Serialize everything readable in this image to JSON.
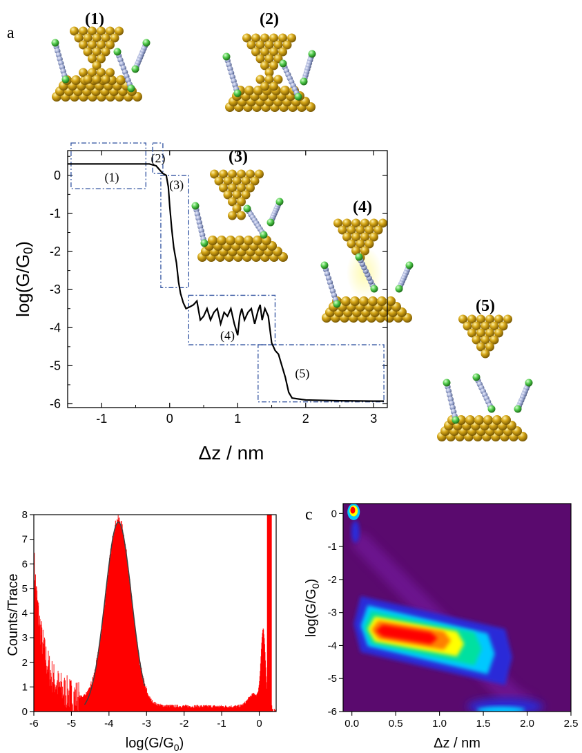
{
  "panel_labels": {
    "a": "a",
    "c": "c"
  },
  "illustrations": {
    "labels": [
      "(1)",
      "(2)",
      "(3)",
      "(4)",
      "(5)"
    ],
    "colors": {
      "gold": "#c9a019",
      "gold_dark": "#8a6a0a",
      "chain": "#9aa6cf",
      "end_group": "#4fc94a",
      "glow": "#fff8a0"
    }
  },
  "chart_data": [
    {
      "id": "trace",
      "type": "line",
      "xlabel": "Δz / nm",
      "ylabel": "log(G/G0)",
      "xlim": [
        -1.5,
        3.2
      ],
      "ylim": [
        -6.1,
        0.65
      ],
      "xticks": [
        -1,
        0,
        1,
        2,
        3
      ],
      "yticks": [
        0,
        -1,
        -2,
        -3,
        -4,
        -5,
        -6
      ],
      "x": [
        -1.5,
        -0.3,
        -0.2,
        -0.15,
        -0.1,
        -0.05,
        -0.02,
        0.0,
        0.03,
        0.06,
        0.1,
        0.13,
        0.16,
        0.2,
        0.24,
        0.3,
        0.35,
        0.4,
        0.45,
        0.5,
        0.55,
        0.6,
        0.65,
        0.7,
        0.75,
        0.8,
        0.85,
        0.9,
        0.95,
        1.0,
        1.03,
        1.06,
        1.1,
        1.15,
        1.2,
        1.25,
        1.3,
        1.33,
        1.36,
        1.4,
        1.45,
        1.5,
        1.55,
        1.6,
        1.65,
        1.7,
        1.75,
        1.8,
        2.0,
        2.5,
        3.0,
        3.15
      ],
      "y": [
        0.3,
        0.3,
        0.25,
        0.15,
        0.05,
        0.0,
        -0.3,
        -0.8,
        -1.4,
        -1.9,
        -2.3,
        -2.8,
        -3.1,
        -3.35,
        -3.5,
        -3.45,
        -3.4,
        -3.3,
        -3.8,
        -3.7,
        -3.5,
        -3.8,
        -3.6,
        -3.5,
        -3.9,
        -3.6,
        -3.7,
        -3.5,
        -3.9,
        -4.2,
        -3.7,
        -3.5,
        -3.8,
        -3.6,
        -3.5,
        -3.9,
        -3.55,
        -3.4,
        -3.8,
        -3.5,
        -3.7,
        -4.4,
        -4.6,
        -4.7,
        -5.0,
        -5.3,
        -5.7,
        -5.85,
        -5.9,
        -5.92,
        -5.93,
        -5.93
      ],
      "annotations": [
        "(1)",
        "(2)",
        "(3)",
        "(4)",
        "(5)"
      ],
      "boxes": [
        {
          "x": [
            -1.45,
            -0.35
          ],
          "y": [
            -0.35,
            0.85
          ]
        },
        {
          "x": [
            -0.25,
            -0.1
          ],
          "y": [
            0.05,
            0.85
          ]
        },
        {
          "x": [
            -0.13,
            0.28
          ],
          "y": [
            -2.95,
            0.0
          ]
        },
        {
          "x": [
            0.28,
            1.55
          ],
          "y": [
            -4.45,
            -3.15
          ]
        },
        {
          "x": [
            1.3,
            3.15
          ],
          "y": [
            -5.95,
            -4.45
          ]
        }
      ]
    },
    {
      "id": "histogram",
      "type": "bar",
      "ylabel": "Counts/Trace",
      "xlabel": "log(G/G0)",
      "xlim": [
        -6.0,
        0.45
      ],
      "ylim": [
        0,
        8
      ],
      "xticks": [
        -6,
        -5,
        -4,
        -3,
        -2,
        -1,
        0
      ],
      "yticks": [
        0,
        1,
        2,
        3,
        4,
        5,
        6,
        7,
        8
      ],
      "series": [
        {
          "color": "#ff0000"
        }
      ],
      "fit": {
        "peak_x": -3.75,
        "peak_y": 7.7,
        "color": "#404040"
      }
    },
    {
      "id": "density",
      "type": "heatmap",
      "xlabel": "Δz / nm",
      "ylabel": "log(G/G0)",
      "xlim": [
        -0.1,
        2.5
      ],
      "ylim": [
        -6,
        0.3
      ],
      "xticks": [
        "0.0",
        "0.5",
        "1.0",
        "1.5",
        "2.0",
        "2.5"
      ],
      "yticks": [
        0,
        -1,
        -2,
        -3,
        -4,
        -5,
        -6
      ],
      "colormap": [
        "#5a0a6e",
        "#2a2ad8",
        "#00c8ff",
        "#00e0a0",
        "#ffff00",
        "#ff8000",
        "#ff0000"
      ],
      "background": "#5a0a6e"
    }
  ]
}
